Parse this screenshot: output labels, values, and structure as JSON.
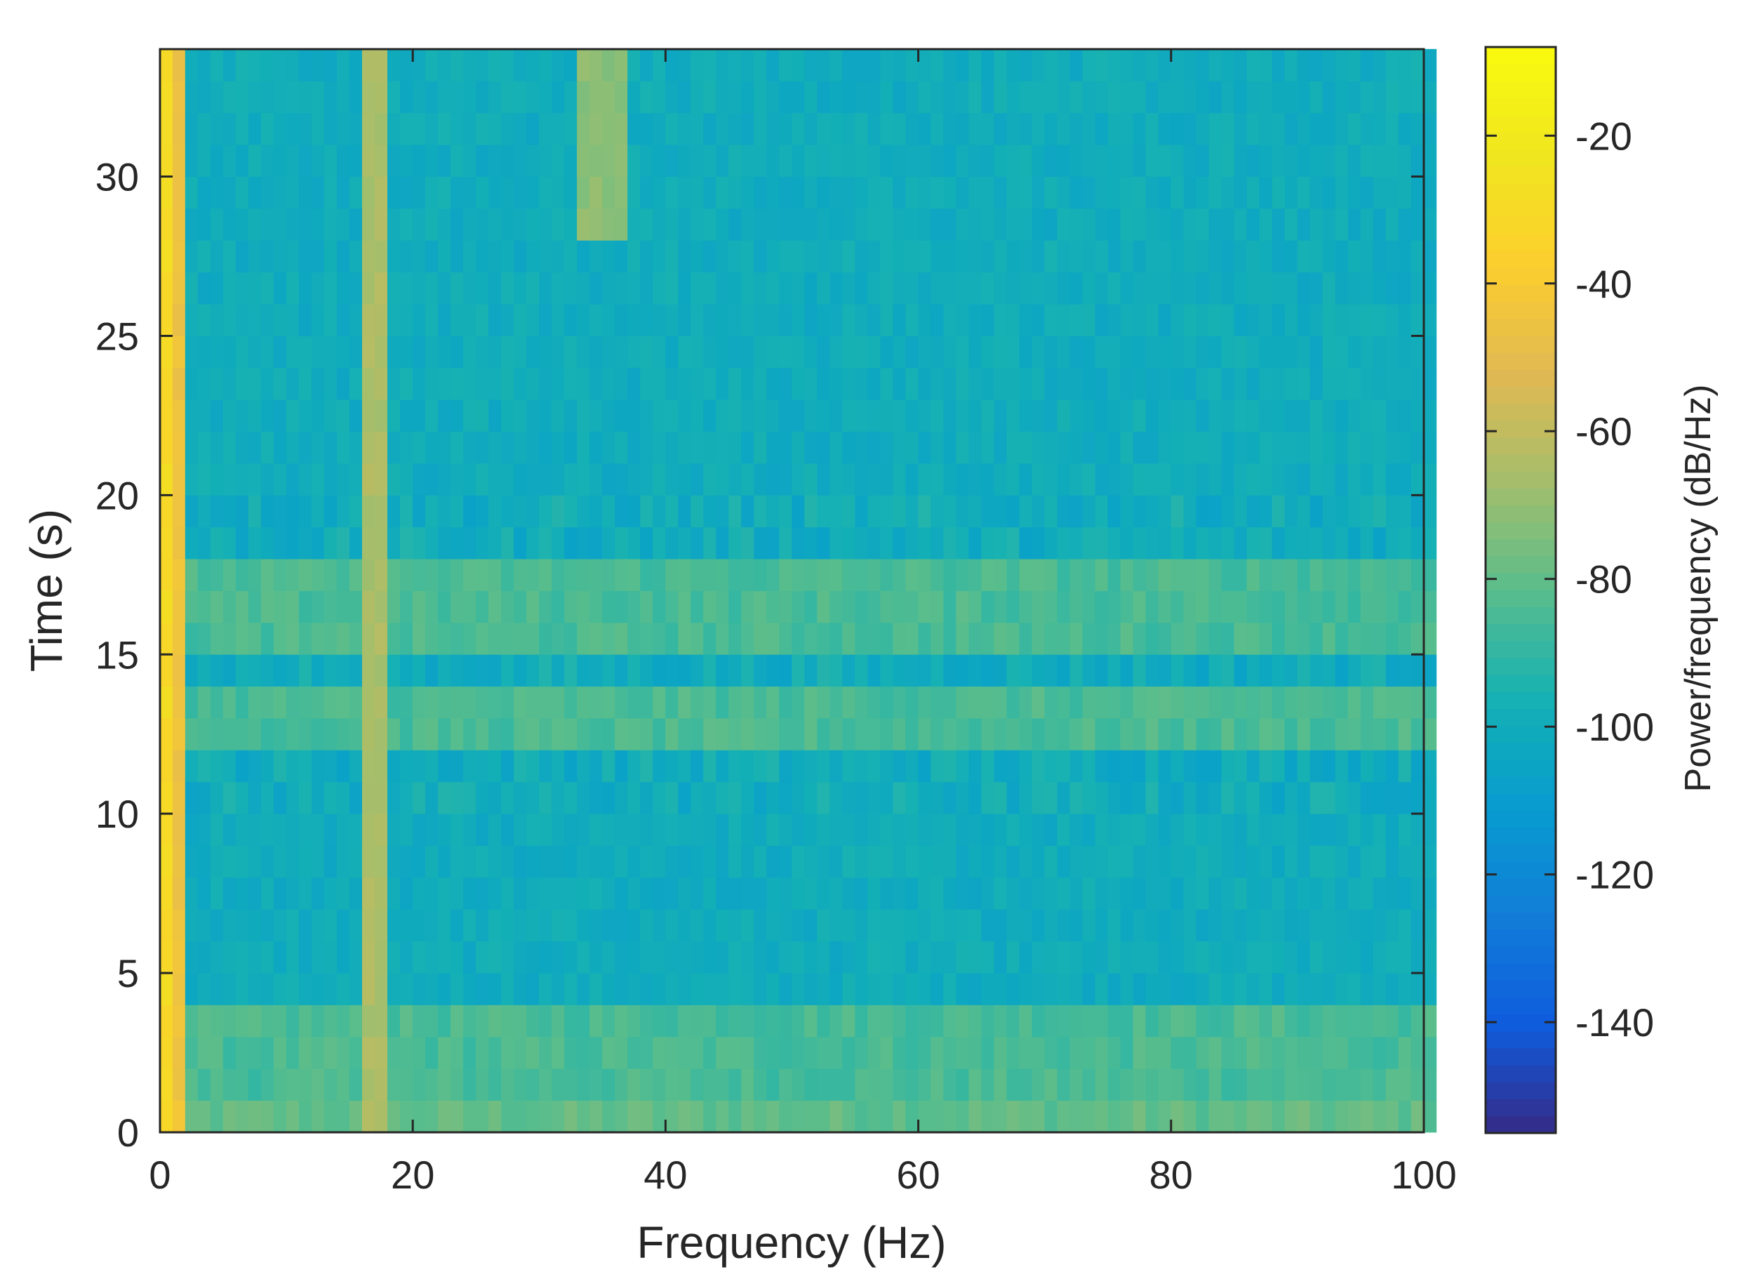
{
  "chart_data": {
    "type": "heatmap",
    "title": "",
    "xlabel": "Frequency (Hz)",
    "ylabel": "Time (s)",
    "colorbar_label": "Power/frequency (dB/Hz)",
    "xlim": [
      0,
      100
    ],
    "ylim": [
      0,
      34
    ],
    "clim": [
      -155,
      -8
    ],
    "x_ticks": [
      0,
      20,
      40,
      60,
      80,
      100
    ],
    "y_ticks": [
      0,
      5,
      10,
      15,
      20,
      25,
      30
    ],
    "colorbar_ticks": [
      -20,
      -40,
      -60,
      -80,
      -100,
      -120,
      -140
    ],
    "colormap": "parula",
    "grid": false,
    "frequency_bins": 101,
    "time_bins": 34,
    "power_db_profile": {
      "bin_0_to_1Hz": -30,
      "bin_1_to_2Hz": -45,
      "ridge_17Hz": -65,
      "ridge_35Hz_late": -72,
      "background_low_rows": -85,
      "background_high_rows": -100,
      "first_1s_row": -80
    },
    "band_rows_time_s": {
      "low_power_rows": [
        0,
        1,
        2,
        3,
        15,
        16,
        17,
        12,
        13
      ],
      "high_noise_rows": [
        18,
        19,
        14,
        10,
        11
      ]
    }
  }
}
